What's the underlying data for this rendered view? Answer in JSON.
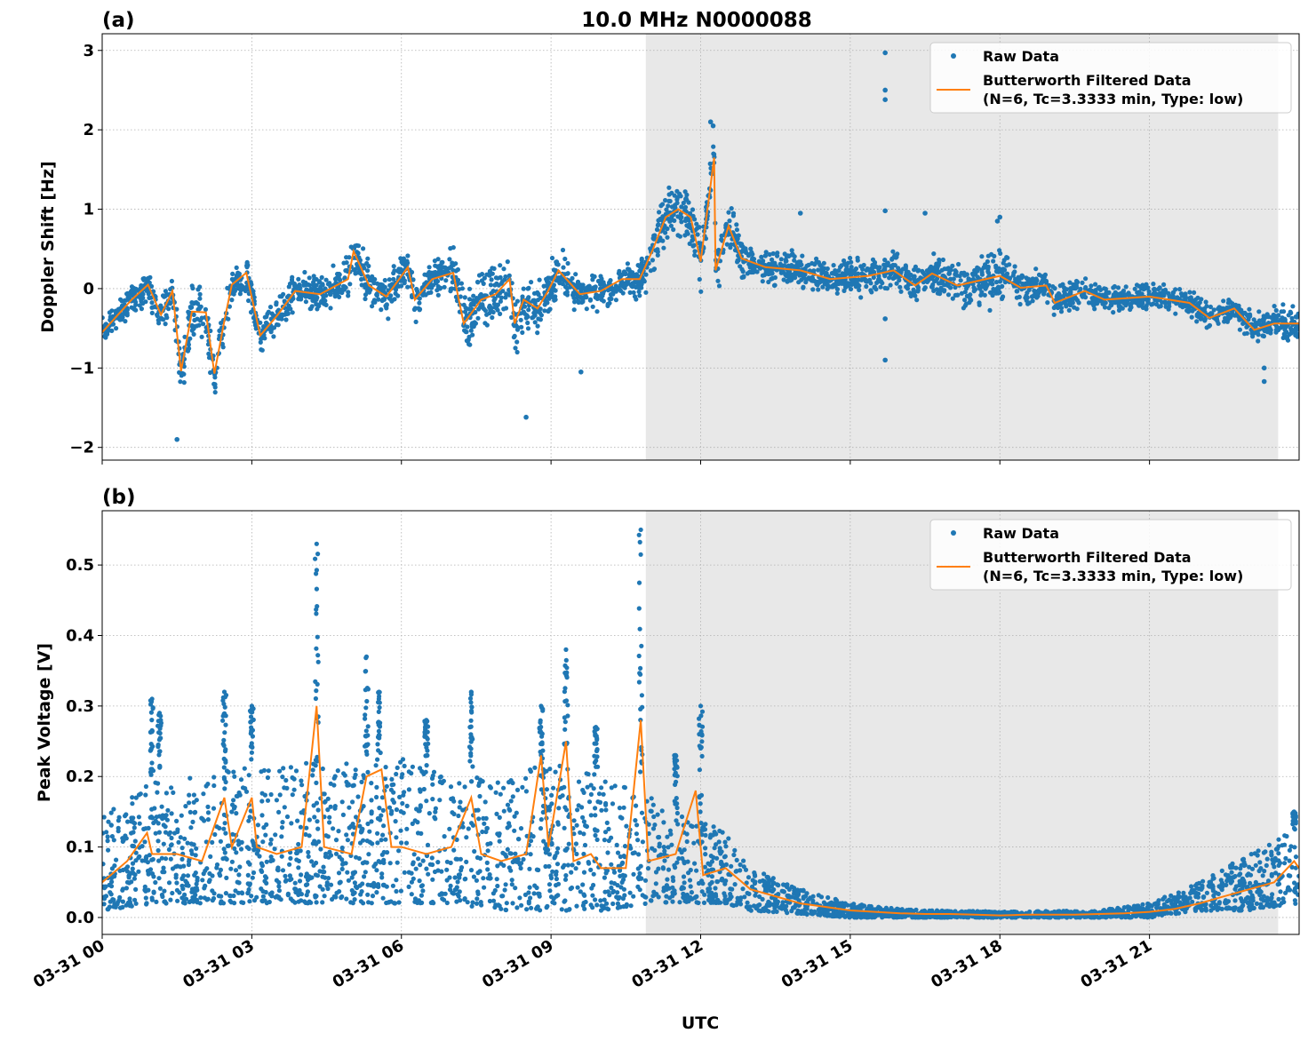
{
  "title": "10.0 MHz N0000088",
  "xlabel": "UTC",
  "x_ticks": [
    "03-31 00",
    "03-31 03",
    "03-31 06",
    "03-31 09",
    "03-31 12",
    "03-31 15",
    "03-31 18",
    "03-31 21"
  ],
  "x_tick_hours": [
    0,
    3,
    6,
    9,
    12,
    15,
    18,
    21
  ],
  "xlim_hours": [
    0,
    24
  ],
  "colors": {
    "raw": "#1f77b4",
    "filtered": "#ff7f0e",
    "shade": "#e8e8e8"
  },
  "chart_data": [
    {
      "type": "scatter+line",
      "panel_label": "(a)",
      "ylabel": "Doppler Shift [Hz]",
      "ylim": [
        -2.16,
        3.21
      ],
      "y_ticks": [
        -2,
        -1,
        0,
        1,
        2,
        3
      ],
      "y_tick_labels": [
        "−2",
        "−1",
        "0",
        "1",
        "2",
        "3"
      ],
      "grid": true,
      "legend_placement": "upper right",
      "legend": [
        "Raw Data",
        "Butterworth Filtered Data",
        "(N=6, Tc=3.3333 min, Type: low)"
      ],
      "shaded_span_hours": [
        10.9,
        23.58
      ],
      "filtered": {
        "x_hours": [
          0,
          0.59,
          0.92,
          1.18,
          1.41,
          1.58,
          1.8,
          2.08,
          2.25,
          2.46,
          2.6,
          2.89,
          3.17,
          3.52,
          3.87,
          4.37,
          4.93,
          5.04,
          5.35,
          5.7,
          6.13,
          6.27,
          6.62,
          7.04,
          7.25,
          7.6,
          7.89,
          8.17,
          8.27,
          8.45,
          8.73,
          8.94,
          9.15,
          9.58,
          10,
          10.42,
          10.78,
          11.04,
          11.3,
          11.55,
          11.8,
          12.0,
          12.27,
          12.3,
          12.56,
          12.82,
          13.3,
          14.0,
          14.6,
          15.36,
          15.87,
          16.3,
          16.64,
          17.15,
          18.0,
          18.42,
          18.93,
          19.1,
          19.7,
          20.1,
          21.0,
          21.8,
          22.2,
          22.7,
          23.1,
          23.5,
          24
        ],
        "y": [
          -0.55,
          -0.14,
          0.05,
          -0.33,
          -0.03,
          -1.04,
          -0.29,
          -0.3,
          -1.07,
          -0.37,
          0.05,
          0.2,
          -0.59,
          -0.33,
          -0.03,
          -0.07,
          0.12,
          0.47,
          0.04,
          -0.1,
          0.27,
          -0.14,
          0.12,
          0.2,
          -0.44,
          -0.14,
          -0.07,
          0.12,
          -0.44,
          -0.14,
          -0.25,
          -0.03,
          0.23,
          -0.07,
          -0.03,
          0.12,
          0.12,
          0.49,
          0.9,
          1.0,
          0.9,
          0.34,
          1.65,
          0.23,
          0.79,
          0.38,
          0.27,
          0.23,
          0.12,
          0.16,
          0.23,
          0.04,
          0.19,
          0.04,
          0.16,
          0.01,
          0.04,
          -0.18,
          -0.03,
          -0.14,
          -0.1,
          -0.18,
          -0.37,
          -0.25,
          -0.52,
          -0.44,
          -0.44
        ]
      },
      "raw_halfwidth": {
        "x_hours": [
          0,
          1.4,
          1.6,
          2.3,
          2.6,
          4.5,
          5.0,
          6.5,
          7.0,
          8.9,
          9.5,
          10.5,
          11.0,
          12.6,
          13.0,
          16.8,
          17.8,
          18.6,
          19.5,
          22.0,
          24
        ],
        "y": [
          0.25,
          0.3,
          0.5,
          0.5,
          0.3,
          0.3,
          0.4,
          0.3,
          0.5,
          0.5,
          0.3,
          0.3,
          0.4,
          0.45,
          0.3,
          0.3,
          0.45,
          0.3,
          0.25,
          0.2,
          0.3
        ]
      },
      "raw_outliers": {
        "x_hours": [
          15.7,
          15.7,
          15.7,
          15.7,
          15.7,
          15.7,
          12.2,
          12.25,
          1.5,
          8.5,
          23.3,
          23.3,
          14.0,
          16.5,
          18.0,
          17.95,
          9.6
        ],
        "y": [
          2.97,
          2.5,
          2.38,
          0.98,
          -0.9,
          -0.38,
          2.1,
          2.05,
          -1.9,
          -1.62,
          -1.17,
          -1.0,
          0.95,
          0.95,
          0.9,
          0.85,
          -1.05
        ]
      }
    },
    {
      "type": "scatter+line",
      "panel_label": "(b)",
      "ylabel": "Peak Voltage [V]",
      "ylim": [
        -0.024,
        0.577
      ],
      "y_ticks": [
        0,
        0.1,
        0.2,
        0.3,
        0.4,
        0.5
      ],
      "y_tick_labels": [
        "0.0",
        "0.1",
        "0.2",
        "0.3",
        "0.4",
        "0.5"
      ],
      "grid": true,
      "legend_placement": "upper right",
      "legend": [
        "Raw Data",
        "Butterworth Filtered Data",
        "(N=6, Tc=3.3333 min, Type: low)"
      ],
      "shaded_span_hours": [
        10.9,
        23.58
      ],
      "filtered": {
        "x_hours": [
          0,
          0.5,
          0.9,
          1.0,
          1.5,
          2.0,
          2.45,
          2.6,
          3.0,
          3.1,
          3.5,
          4.0,
          4.3,
          4.45,
          5.0,
          5.3,
          5.6,
          5.8,
          6.0,
          6.5,
          7.0,
          7.4,
          7.6,
          8.0,
          8.5,
          8.8,
          8.95,
          9.3,
          9.45,
          9.8,
          10.0,
          10.5,
          10.8,
          10.95,
          11.5,
          11.9,
          12.05,
          12.5,
          13.0,
          13.5,
          14.0,
          14.5,
          15.0,
          15.5,
          16.0,
          16.5,
          17.0,
          17.5,
          18.0,
          18.5,
          19.0,
          19.5,
          20.0,
          20.5,
          21.0,
          21.5,
          22.0,
          22.5,
          23.0,
          23.5,
          23.9,
          24
        ],
        "y": [
          0.05,
          0.08,
          0.12,
          0.09,
          0.09,
          0.08,
          0.17,
          0.1,
          0.17,
          0.1,
          0.09,
          0.1,
          0.3,
          0.1,
          0.09,
          0.2,
          0.21,
          0.1,
          0.1,
          0.09,
          0.1,
          0.17,
          0.09,
          0.08,
          0.09,
          0.23,
          0.1,
          0.25,
          0.08,
          0.09,
          0.07,
          0.07,
          0.28,
          0.08,
          0.09,
          0.18,
          0.06,
          0.07,
          0.04,
          0.03,
          0.02,
          0.015,
          0.01,
          0.008,
          0.006,
          0.005,
          0.005,
          0.004,
          0.003,
          0.004,
          0.004,
          0.004,
          0.005,
          0.006,
          0.008,
          0.012,
          0.02,
          0.03,
          0.04,
          0.05,
          0.08,
          0.07
        ]
      },
      "raw_band": {
        "x_hours": [
          0,
          1,
          2,
          3,
          4,
          5,
          6,
          7,
          8,
          9,
          10,
          11,
          12,
          12.5,
          13,
          14,
          15,
          16,
          18,
          20,
          21,
          22,
          23,
          24
        ],
        "lower": [
          0.01,
          0.02,
          0.02,
          0.02,
          0.02,
          0.02,
          0.02,
          0.02,
          0.01,
          0.01,
          0.01,
          0.02,
          0.02,
          0.02,
          0.01,
          0.005,
          0,
          0,
          0,
          0,
          0,
          0.01,
          0.01,
          0.02
        ],
        "upper": [
          0.14,
          0.2,
          0.2,
          0.22,
          0.22,
          0.22,
          0.23,
          0.2,
          0.2,
          0.22,
          0.2,
          0.17,
          0.14,
          0.12,
          0.07,
          0.04,
          0.02,
          0.012,
          0.008,
          0.01,
          0.02,
          0.05,
          0.09,
          0.13
        ]
      },
      "raw_spikes": {
        "x_hours": [
          1.0,
          1.15,
          2.45,
          3.0,
          4.3,
          5.3,
          5.55,
          6.5,
          7.4,
          8.8,
          9.3,
          9.9,
          10.8,
          12.0,
          11.5,
          23.9
        ],
        "y": [
          0.31,
          0.29,
          0.32,
          0.3,
          0.53,
          0.37,
          0.32,
          0.28,
          0.32,
          0.3,
          0.38,
          0.27,
          0.55,
          0.3,
          0.23,
          0.15
        ]
      }
    }
  ]
}
